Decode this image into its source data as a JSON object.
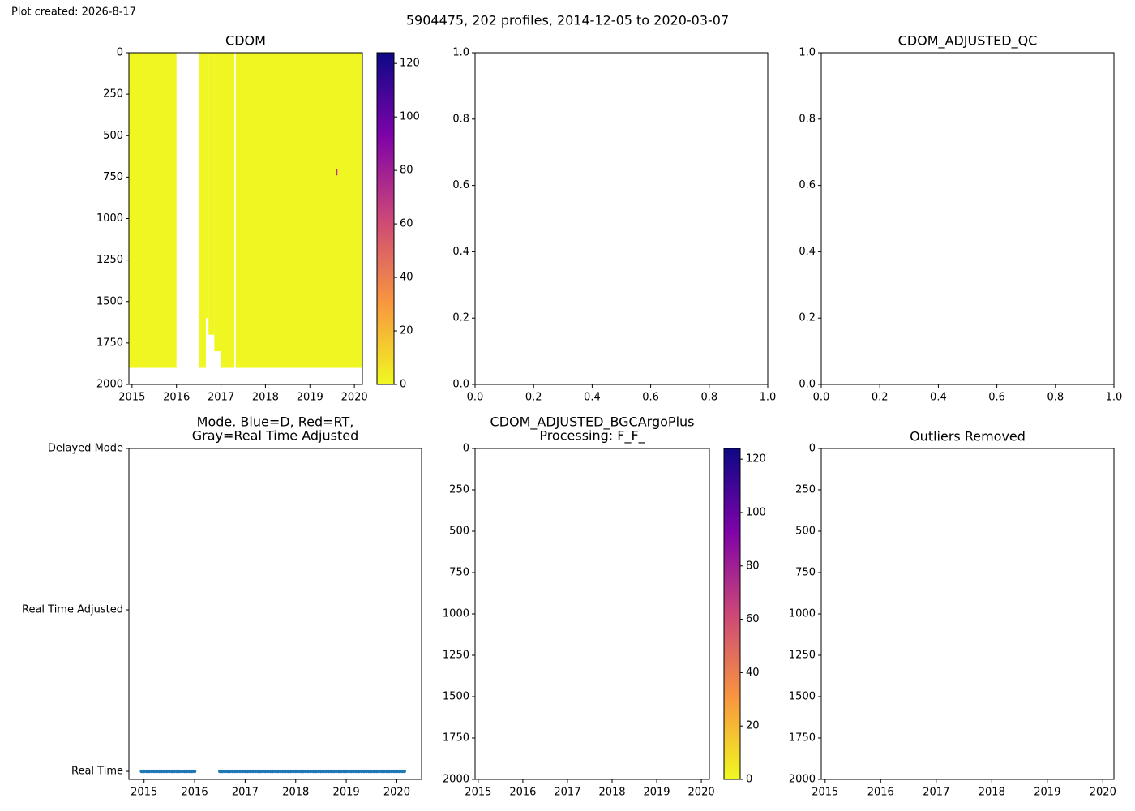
{
  "created": "Plot created: 2026-8-17",
  "suptitle": "5904475, 202 profiles, 2014-12-05 to 2020-03-07",
  "chart_data": [
    {
      "type": "heatmap",
      "title": "CDOM",
      "xlim": [
        2014.93,
        2020.18
      ],
      "xticks": [
        2015,
        2016,
        2017,
        2018,
        2019,
        2020
      ],
      "ylim": [
        2000,
        0
      ],
      "yticks": [
        0,
        250,
        500,
        750,
        1000,
        1250,
        1500,
        1750,
        2000
      ],
      "clim": [
        0,
        124
      ],
      "cticks": [
        0,
        20,
        40,
        60,
        80,
        100,
        120
      ],
      "colormap": [
        "#f0f921",
        "#f89540",
        "#cc4778",
        "#7e03a8",
        "#0d0887"
      ],
      "segments": [
        {
          "x": [
            2014.93,
            2016.0
          ],
          "depth": [
            0,
            1900
          ],
          "value": 1
        },
        {
          "x": [
            2016.5,
            2016.66
          ],
          "depth": [
            0,
            1900
          ],
          "value": 1
        },
        {
          "x": [
            2016.66,
            2016.72
          ],
          "depth": [
            0,
            1600
          ],
          "value": 1
        },
        {
          "x": [
            2016.72,
            2016.85
          ],
          "depth": [
            0,
            1700
          ],
          "value": 1
        },
        {
          "x": [
            2016.85,
            2017.0
          ],
          "depth": [
            0,
            1800
          ],
          "value": 1
        },
        {
          "x": [
            2017.0,
            2017.3
          ],
          "depth": [
            0,
            1900
          ],
          "value": 1
        },
        {
          "x": [
            2017.33,
            2020.18
          ],
          "depth": [
            0,
            1900
          ],
          "value": 1
        },
        {
          "x": [
            2019.58,
            2019.62
          ],
          "depth": [
            700,
            740
          ],
          "value": 70
        }
      ]
    },
    {
      "type": "empty",
      "xlim": [
        0,
        1
      ],
      "xticks": [
        {
          "value": 0,
          "label": "0.0"
        },
        0.2,
        0.4,
        0.6,
        0.8,
        {
          "value": 1,
          "label": "1.0"
        }
      ],
      "ylim": [
        0,
        1
      ],
      "yticks": [
        {
          "value": 0,
          "label": "0.0"
        },
        0.2,
        0.4,
        0.6,
        0.8,
        {
          "value": 1,
          "label": "1.0"
        }
      ]
    },
    {
      "type": "empty",
      "title": "CDOM_ADJUSTED_QC",
      "xlim": [
        0,
        1
      ],
      "xticks": [
        {
          "value": 0,
          "label": "0.0"
        },
        0.2,
        0.4,
        0.6,
        0.8,
        {
          "value": 1,
          "label": "1.0"
        }
      ],
      "ylim": [
        0,
        1
      ],
      "yticks": [
        {
          "value": 0,
          "label": "0.0"
        },
        0.2,
        0.4,
        0.6,
        0.8,
        {
          "value": 1,
          "label": "1.0"
        }
      ]
    },
    {
      "type": "scatter",
      "title": [
        "Mode. Blue=D, Red=RT,",
        "Gray=Real Time Adjusted"
      ],
      "xlim": [
        2014.7,
        2020.49
      ],
      "xticks": [
        2015,
        2016,
        2017,
        2018,
        2019,
        2020
      ],
      "ylim": [
        -0.05,
        2
      ],
      "yticks": [
        {
          "value": 0,
          "label": "Real Time"
        },
        {
          "value": 1,
          "label": "Real Time Adjusted"
        },
        {
          "value": 2,
          "label": "Delayed Mode"
        }
      ],
      "color": "#1f77b4",
      "x": [
        2014.95,
        2015.0,
        2015.05,
        2015.1,
        2015.15,
        2015.2,
        2015.25,
        2015.3,
        2015.35,
        2015.4,
        2015.45,
        2015.5,
        2015.55,
        2015.6,
        2015.65,
        2015.7,
        2015.75,
        2015.8,
        2015.85,
        2015.9,
        2015.95,
        2016.0,
        2016.5,
        2016.55,
        2016.6,
        2016.65,
        2016.7,
        2016.75,
        2016.8,
        2016.85,
        2016.9,
        2016.95,
        2017.0,
        2017.05,
        2017.1,
        2017.15,
        2017.2,
        2017.25,
        2017.3,
        2017.35,
        2017.4,
        2017.45,
        2017.5,
        2017.55,
        2017.6,
        2017.65,
        2017.7,
        2017.75,
        2017.8,
        2017.85,
        2017.9,
        2017.95,
        2018.0,
        2018.05,
        2018.1,
        2018.15,
        2018.2,
        2018.25,
        2018.3,
        2018.35,
        2018.4,
        2018.45,
        2018.5,
        2018.55,
        2018.6,
        2018.65,
        2018.7,
        2018.75,
        2018.8,
        2018.85,
        2018.9,
        2018.95,
        2019.0,
        2019.05,
        2019.1,
        2019.15,
        2019.2,
        2019.25,
        2019.3,
        2019.35,
        2019.4,
        2019.45,
        2019.5,
        2019.55,
        2019.6,
        2019.65,
        2019.7,
        2019.75,
        2019.8,
        2019.85,
        2019.9,
        2019.95,
        2020.0,
        2020.05,
        2020.1,
        2020.15
      ],
      "values": [
        0,
        0,
        0,
        0,
        0,
        0,
        0,
        0,
        0,
        0,
        0,
        0,
        0,
        0,
        0,
        0,
        0,
        0,
        0,
        0,
        0,
        0,
        0,
        0,
        0,
        0,
        0,
        0,
        0,
        0,
        0,
        0,
        0,
        0,
        0,
        0,
        0,
        0,
        0,
        0,
        0,
        0,
        0,
        0,
        0,
        0,
        0,
        0,
        0,
        0,
        0,
        0,
        0,
        0,
        0,
        0,
        0,
        0,
        0,
        0,
        0,
        0,
        0,
        0,
        0,
        0,
        0,
        0,
        0,
        0,
        0,
        0,
        0,
        0,
        0,
        0,
        0,
        0,
        0,
        0,
        0,
        0,
        0,
        0,
        0,
        0,
        0,
        0,
        0,
        0,
        0,
        0,
        0,
        0,
        0,
        0
      ]
    },
    {
      "type": "heatmap",
      "title": [
        "CDOM_ADJUSTED_BGCArgoPlus",
        "Processing: F_F_"
      ],
      "xlim": [
        2014.93,
        2020.18
      ],
      "xticks": [
        2015,
        2016,
        2017,
        2018,
        2019,
        2020
      ],
      "ylim": [
        2000,
        0
      ],
      "yticks": [
        0,
        250,
        500,
        750,
        1000,
        1250,
        1500,
        1750,
        2000
      ],
      "clim": [
        0,
        124
      ],
      "cticks": [
        0,
        20,
        40,
        60,
        80,
        100,
        120
      ],
      "colormap": [
        "#f0f921",
        "#f89540",
        "#cc4778",
        "#7e03a8",
        "#0d0887"
      ],
      "segments": []
    },
    {
      "type": "heatmap",
      "title": "Outliers Removed",
      "xlim": [
        2014.93,
        2020.2
      ],
      "xticks": [
        2015,
        2016,
        2017,
        2018,
        2019,
        2020
      ],
      "ylim": [
        2000,
        0
      ],
      "yticks": [
        0,
        250,
        500,
        750,
        1000,
        1250,
        1500,
        1750,
        2000
      ],
      "segments": []
    }
  ]
}
